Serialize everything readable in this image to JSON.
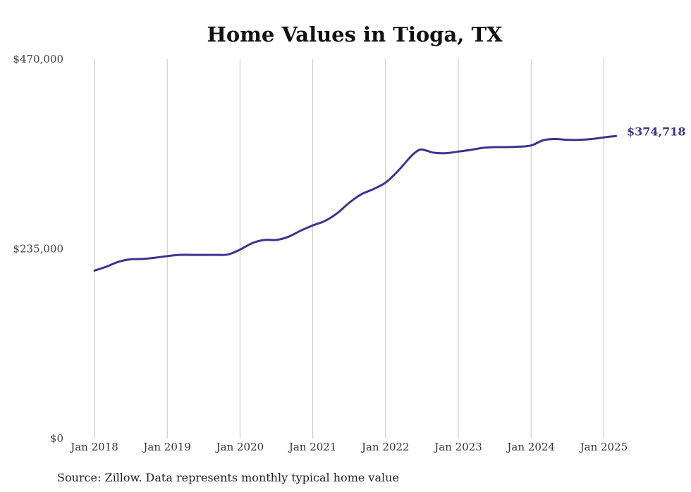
{
  "chart_data": {
    "type": "line",
    "title": "Home Values in Tioga, TX",
    "xlabel": "",
    "ylabel": "",
    "source": "Source: Zillow. Data represents monthly typical home value",
    "ylim": [
      0,
      470000
    ],
    "y_ticks": [
      {
        "value": 0,
        "label": "$0"
      },
      {
        "value": 235000,
        "label": "$235,000"
      },
      {
        "value": 470000,
        "label": "$470,000"
      }
    ],
    "x_ticks": [
      {
        "value": "2018-01",
        "label": "Jan 2018"
      },
      {
        "value": "2019-01",
        "label": "Jan 2019"
      },
      {
        "value": "2020-01",
        "label": "Jan 2020"
      },
      {
        "value": "2021-01",
        "label": "Jan 2021"
      },
      {
        "value": "2022-01",
        "label": "Jan 2022"
      },
      {
        "value": "2023-01",
        "label": "Jan 2023"
      },
      {
        "value": "2024-01",
        "label": "Jan 2024"
      },
      {
        "value": "2025-01",
        "label": "Jan 2025"
      }
    ],
    "x_grid": true,
    "y_grid": false,
    "series_color": "#3a3590",
    "end_label": "$374,718",
    "series": [
      {
        "name": "",
        "x": [
          "2018-01",
          "2018-03",
          "2018-05",
          "2018-07",
          "2018-09",
          "2018-11",
          "2019-01",
          "2019-03",
          "2019-05",
          "2019-07",
          "2019-09",
          "2019-11",
          "2020-01",
          "2020-03",
          "2020-05",
          "2020-07",
          "2020-09",
          "2020-11",
          "2021-01",
          "2021-03",
          "2021-05",
          "2021-07",
          "2021-09",
          "2021-11",
          "2022-01",
          "2022-03",
          "2022-05",
          "2022-06",
          "2022-07",
          "2022-09",
          "2022-11",
          "2023-01",
          "2023-03",
          "2023-05",
          "2023-07",
          "2023-09",
          "2023-11",
          "2024-01",
          "2024-03",
          "2024-05",
          "2024-07",
          "2024-09",
          "2024-11",
          "2025-01",
          "2025-02",
          "2025-03"
        ],
        "y": [
          208000,
          213000,
          219000,
          222000,
          222500,
          224000,
          226000,
          227500,
          227500,
          227500,
          227500,
          228000,
          234000,
          242000,
          246000,
          246000,
          250000,
          257500,
          264000,
          269500,
          279000,
          292000,
          302500,
          309000,
          317000,
          331000,
          348000,
          355000,
          358000,
          354000,
          353500,
          355500,
          357500,
          360000,
          361000,
          361000,
          361500,
          363000,
          369500,
          371000,
          370000,
          370000,
          371000,
          373000,
          374000,
          374718
        ]
      }
    ]
  }
}
